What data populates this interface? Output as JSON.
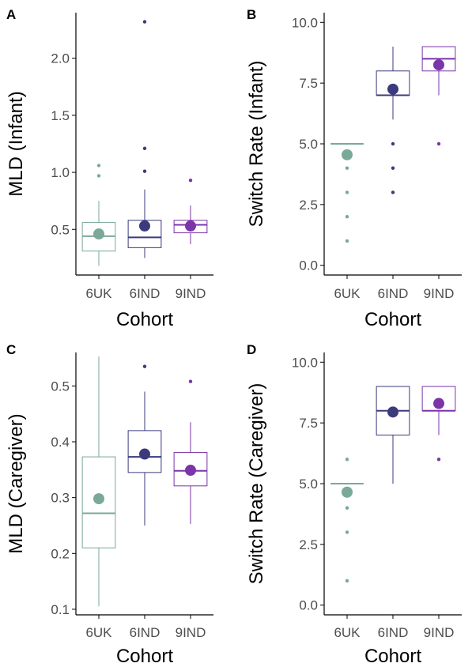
{
  "colors": {
    "6UK": "#7aa89a",
    "6IND": "#3b3a7c",
    "9IND": "#7a35a8",
    "axis": "#000000",
    "tick_text": "#4d4d4d"
  },
  "chart_data": [
    {
      "type": "box",
      "letter": "A",
      "xlabel": "Cohort",
      "ylabel": "MLD (Infant)",
      "categories": [
        "6UK",
        "6IND",
        "9IND"
      ],
      "ylim": [
        0.1,
        2.4
      ],
      "yticks": [
        0.5,
        1.0,
        1.5,
        2.0
      ],
      "ytick_labels": [
        "0.5",
        "1.0",
        "1.5",
        "2.0"
      ],
      "boxes": [
        {
          "min": 0.18,
          "q1": 0.31,
          "median": 0.44,
          "q3": 0.56,
          "max": 0.75,
          "mean": 0.46,
          "outliers": [
            0.97,
            1.06
          ]
        },
        {
          "min": 0.25,
          "q1": 0.34,
          "median": 0.43,
          "q3": 0.58,
          "max": 0.85,
          "mean": 0.53,
          "outliers": [
            1.01,
            1.21,
            2.32
          ]
        },
        {
          "min": 0.37,
          "q1": 0.47,
          "median": 0.54,
          "q3": 0.58,
          "max": 0.71,
          "mean": 0.53,
          "outliers": [
            0.93
          ]
        }
      ]
    },
    {
      "type": "box",
      "letter": "B",
      "xlabel": "Cohort",
      "ylabel": "Switch Rate (Infant)",
      "categories": [
        "6UK",
        "6IND",
        "9IND"
      ],
      "ylim": [
        -0.4,
        10.4
      ],
      "yticks": [
        0,
        2.5,
        5,
        7.5,
        10
      ],
      "ytick_labels": [
        "0.0",
        "2.5",
        "5.0",
        "7.5",
        "10.0"
      ],
      "boxes": [
        {
          "min": 5,
          "q1": 5,
          "median": 5,
          "q3": 5,
          "max": 5,
          "mean": 4.55,
          "outliers": [
            1,
            2,
            3,
            4
          ]
        },
        {
          "min": 6,
          "q1": 7,
          "median": 7,
          "q3": 8,
          "max": 9,
          "mean": 7.25,
          "outliers": [
            3,
            4,
            5
          ]
        },
        {
          "min": 7,
          "q1": 8,
          "median": 8.5,
          "q3": 9,
          "max": 9,
          "mean": 8.25,
          "outliers": [
            5
          ]
        }
      ]
    },
    {
      "type": "box",
      "letter": "C",
      "xlabel": "Cohort",
      "ylabel": "MLD (Caregiver)",
      "categories": [
        "6UK",
        "6IND",
        "9IND"
      ],
      "ylim": [
        0.09,
        0.56
      ],
      "yticks": [
        0.1,
        0.2,
        0.3,
        0.4,
        0.5
      ],
      "ytick_labels": [
        "0.1",
        "0.2",
        "0.3",
        "0.4",
        "0.5"
      ],
      "boxes": [
        {
          "min": 0.105,
          "q1": 0.21,
          "median": 0.272,
          "q3": 0.373,
          "max": 0.553,
          "mean": 0.298,
          "outliers": []
        },
        {
          "min": 0.25,
          "q1": 0.345,
          "median": 0.373,
          "q3": 0.42,
          "max": 0.49,
          "mean": 0.378,
          "outliers": [
            0.535
          ]
        },
        {
          "min": 0.253,
          "q1": 0.321,
          "median": 0.348,
          "q3": 0.381,
          "max": 0.435,
          "mean": 0.349,
          "outliers": [
            0.508
          ]
        }
      ]
    },
    {
      "type": "box",
      "letter": "D",
      "xlabel": "Cohort",
      "ylabel": "Switch Rate (Caregiver)",
      "categories": [
        "6UK",
        "6IND",
        "9IND"
      ],
      "ylim": [
        -0.4,
        10.4
      ],
      "yticks": [
        0,
        2.5,
        5,
        7.5,
        10
      ],
      "ytick_labels": [
        "0.0",
        "2.5",
        "5.0",
        "7.5",
        "10.0"
      ],
      "boxes": [
        {
          "min": 5,
          "q1": 5,
          "median": 5,
          "q3": 5,
          "max": 5,
          "mean": 4.65,
          "outliers": [
            1,
            3,
            4,
            6
          ]
        },
        {
          "min": 5,
          "q1": 7,
          "median": 8,
          "q3": 9,
          "max": 9,
          "mean": 7.95,
          "outliers": []
        },
        {
          "min": 7,
          "q1": 8,
          "median": 8,
          "q3": 9,
          "max": 9,
          "mean": 8.3,
          "outliers": [
            6
          ]
        }
      ]
    }
  ]
}
